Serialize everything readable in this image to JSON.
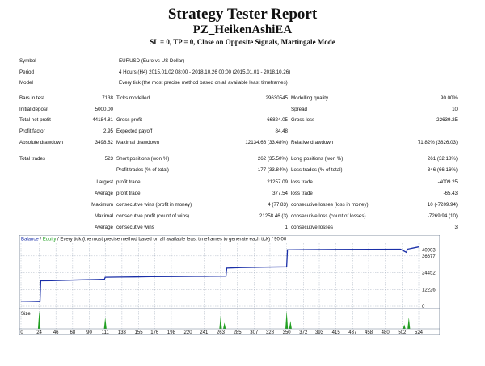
{
  "header": {
    "title": "Strategy Tester Report",
    "subtitle": "PZ_HeikenAshiEA",
    "description": "SL = 0, TP = 0, Close on Opposite Signals, Martingale Mode"
  },
  "info": {
    "symbol_label": "Symbol",
    "symbol_value": "EURUSD (Euro vs US Dollar)",
    "period_label": "Period",
    "period_value": "4 Hours (H4) 2015.01.02 08:00 - 2018.10.26 00:00 (2015.01.01 - 2018.10.26)",
    "model_label": "Model",
    "model_value": "Every tick (the most precise method based on all available least timeframes)"
  },
  "stats": {
    "bars_label": "Bars in test",
    "bars_value": "7138",
    "ticks_label": "Ticks modelled",
    "ticks_value": "29630545",
    "quality_label": "Modelling quality",
    "quality_value": "90.00%",
    "deposit_label": "Initial deposit",
    "deposit_value": "5000.00",
    "spread_label": "Spread",
    "spread_value": "10",
    "netprofit_label": "Total net profit",
    "netprofit_value": "44184.81",
    "grossprofit_label": "Gross profit",
    "grossprofit_value": "66824.05",
    "grossloss_label": "Gross loss",
    "grossloss_value": "-22639.25",
    "pf_label": "Profit factor",
    "pf_value": "2.95",
    "payoff_label": "Expected payoff",
    "payoff_value": "84.48",
    "absdd_label": "Absolute drawdown",
    "absdd_value": "3498.82",
    "maxdd_label": "Maximal drawdown",
    "maxdd_value": "12134.66 (33.48%)",
    "reldd_label": "Relative drawdown",
    "reldd_value": "71.82% (3826.03)"
  },
  "trades": {
    "total_label": "Total trades",
    "total_value": "523",
    "short_label": "Short positions (won %)",
    "short_value": "262 (35.50%)",
    "long_label": "Long positions (won %)",
    "long_value": "261 (32.18%)",
    "profit_trades_label": "Profit trades (% of total)",
    "profit_trades_value": "177 (33.84%)",
    "loss_trades_label": "Loss trades (% of total)",
    "loss_trades_value": "346 (66.16%)",
    "largest_label": "Largest",
    "largest_profit_label": "profit trade",
    "largest_profit_value": "21257.09",
    "largest_loss_label": "loss trade",
    "largest_loss_value": "-4009.25",
    "average_label": "Average",
    "average_profit_label": "profit trade",
    "average_profit_value": "377.54",
    "average_loss_label": "loss trade",
    "average_loss_value": "-65.43",
    "maximum_label": "Maximum",
    "max_cons_wins_label": "consecutive wins (profit in money)",
    "max_cons_wins_value": "4 (77.83)",
    "max_cons_losses_label": "consecutive losses (loss in money)",
    "max_cons_losses_value": "10 (-7209.94)",
    "maximal_label": "Maximal",
    "maximal_cons_profit_label": "consecutive profit (count of wins)",
    "maximal_cons_profit_value": "21258.46 (3)",
    "maximal_cons_loss_label": "consecutive loss (count of losses)",
    "maximal_cons_loss_value": "-7269.94 (10)",
    "average2_label": "Average",
    "avg_cons_wins_label": "consecutive wins",
    "avg_cons_wins_value": "1",
    "avg_cons_losses_label": "consecutive losses",
    "avg_cons_losses_value": "3"
  },
  "chart_caption": {
    "balance": "Balance",
    "sep": " / ",
    "equity": "Equity",
    "rest": " / Every tick (the most precise method based on all available least timeframes to generate each tick) / 90.00"
  },
  "colors": {
    "balance": "#1a2fa8",
    "equity": "#21a021",
    "grid": "#9aa6b8"
  },
  "chart_data": {
    "type": "line",
    "x": [
      0,
      10,
      25,
      26,
      40,
      60,
      80,
      100,
      110,
      111,
      130,
      150,
      170,
      200,
      230,
      250,
      270,
      271,
      290,
      320,
      350,
      351,
      380,
      420,
      460,
      500,
      508,
      509,
      524
    ],
    "series": [
      {
        "name": "Balance",
        "values": [
          3700,
          3620,
          3400,
          18600,
          18700,
          19000,
          19300,
          19500,
          19700,
          21200,
          21300,
          21400,
          21600,
          21700,
          21800,
          21900,
          22000,
          27800,
          28200,
          28500,
          28700,
          41100,
          41300,
          41400,
          41500,
          41600,
          39200,
          41600,
          43200
        ]
      }
    ],
    "y_ticks": [
      "40903",
      "36677",
      "24452",
      "12226",
      "0"
    ],
    "x_ticks": [
      "0",
      "24",
      "46",
      "68",
      "90",
      "111",
      "133",
      "155",
      "176",
      "198",
      "220",
      "241",
      "263",
      "285",
      "307",
      "328",
      "350",
      "372",
      "393",
      "415",
      "437",
      "458",
      "480",
      "502",
      "524"
    ],
    "xlim": [
      0,
      524
    ],
    "ylim": [
      0,
      46000
    ],
    "size_label": "Size",
    "size_spikes": [
      {
        "x": 24,
        "value": 1.0
      },
      {
        "x": 111,
        "value": 0.65
      },
      {
        "x": 263,
        "value": 0.75
      },
      {
        "x": 268,
        "value": 0.35
      },
      {
        "x": 350,
        "value": 1.0
      },
      {
        "x": 355,
        "value": 0.45
      },
      {
        "x": 505,
        "value": 0.25
      },
      {
        "x": 511,
        "value": 0.65
      }
    ]
  }
}
